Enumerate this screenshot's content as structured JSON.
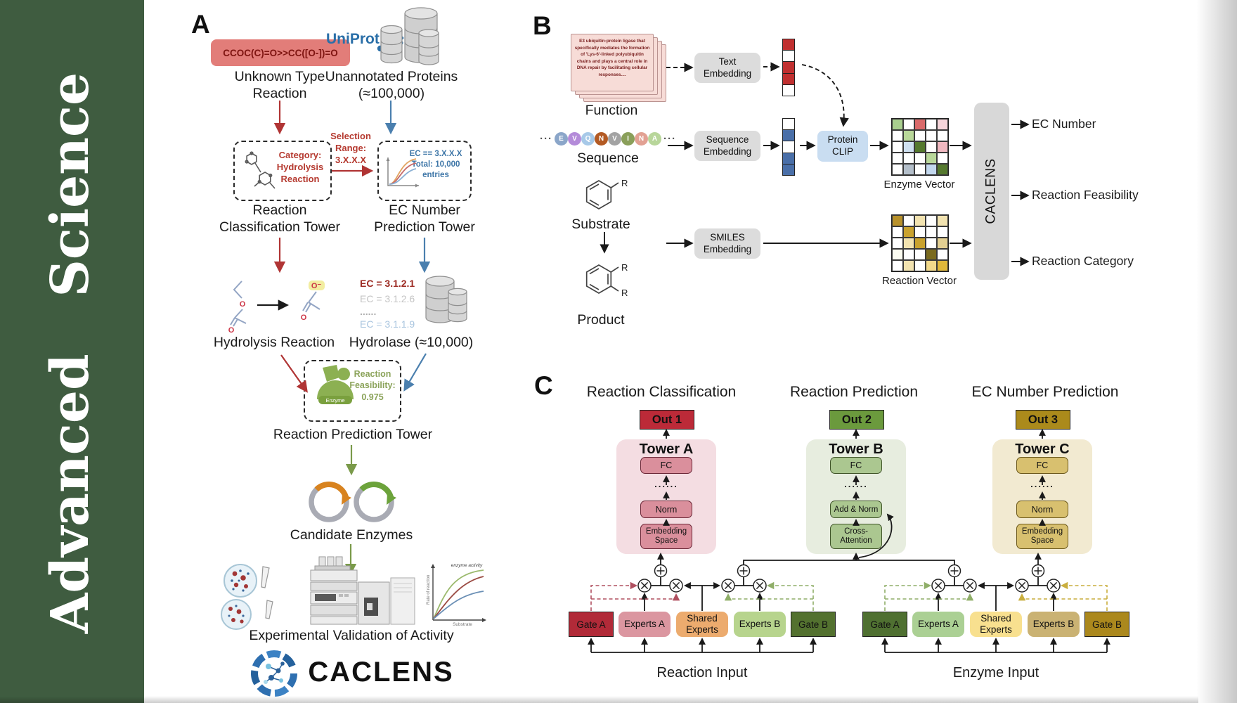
{
  "journal": {
    "name": "Advanced Science"
  },
  "panelA": {
    "label": "A",
    "smiles": "CCOC(C)=O>>CC([O-])=O",
    "unknown_reaction": "Unknown Type Reaction",
    "uniprot": "UniProt",
    "unannotated": "Unannotated Proteins (≈100,000)",
    "classification_note": "Category: Hydrolysis Reaction",
    "selection_note": "Selection Range: 3.X.X.X",
    "ec_note": "EC == 3.X.X.X Total: 10,000 entries",
    "tower_classification": "Reaction Classification Tower",
    "tower_ec": "EC Number Prediction Tower",
    "hydrolysis": "Hydrolysis Reaction",
    "ec_list": [
      "EC = 3.1.2.1",
      "EC = 3.1.2.6",
      "......",
      "EC = 3.1.1.9"
    ],
    "hydrolase": "Hydrolase (≈10,000)",
    "enzyme_label": "Enzyme",
    "feasibility_note": "Reaction Feasibility: 0.975",
    "tower_prediction": "Reaction Prediction Tower",
    "candidates": "Candidate Enzymes",
    "validation": "Experimental Validation of Activity",
    "brand": "CACLENS",
    "atoms": {
      "o": "O",
      "o_minus": "O⁻"
    },
    "mini_chart": {
      "annotation": "enzyme activity",
      "ylabel": "Rate of reaction",
      "xlabel": "Substrate"
    }
  },
  "panelB": {
    "label": "B",
    "function_text": "E3 ubiquitin-protein ligase that specifically mediates the formation of 'Lys-6'-linked polyubiquitin chains and plays a central role in DNA repair by facilitating cellular responses....",
    "function_label": "Function",
    "ellipsis": "···",
    "sequence_label": "Sequence",
    "sequence": [
      {
        "letter": "E",
        "color": "#8ba6c9"
      },
      {
        "letter": "V",
        "color": "#b48bd9"
      },
      {
        "letter": "Q",
        "color": "#a7c9e8"
      },
      {
        "letter": "N",
        "color": "#b35a23"
      },
      {
        "letter": "V",
        "color": "#a3a3a3"
      },
      {
        "letter": "I",
        "color": "#8a9f5a"
      },
      {
        "letter": "N",
        "color": "#e2a193"
      },
      {
        "letter": "A",
        "color": "#b8d69a"
      }
    ],
    "substrate_label": "Substrate",
    "product_label": "Product",
    "r_label": "R",
    "text_embedding": "Text Embedding",
    "sequence_embedding": "Sequence Embedding",
    "smiles_embedding": "SMILES Embedding",
    "protein_clip": "Protein CLIP",
    "text_vector": [
      "#c03030",
      "#ffffff",
      "#c03030",
      "#c03030",
      "#ffffff"
    ],
    "sequence_vector": [
      "#ffffff",
      "#4a6fa8",
      "#ffffff",
      "#4a6fa8",
      "#4a6fa8"
    ],
    "enzyme_vector_label": "Enzyme Vector",
    "enzyme_vector": [
      [
        "#a9cf8e",
        "#ffffff",
        "#d96a6a",
        "#ffffff",
        "#f6d5da"
      ],
      [
        "#ffffff",
        "#b9d89a",
        "#ffffff",
        "#ffffff",
        "#ffffff"
      ],
      [
        "#ffffff",
        "#cfe0f0",
        "#55792e",
        "#ffffff",
        "#f0b8c0"
      ],
      [
        "#ffffff",
        "#ffffff",
        "#ffffff",
        "#b9d89a",
        "#ffffff"
      ],
      [
        "#ffffff",
        "#b4bfca",
        "#ffffff",
        "#c3d8ee",
        "#55792e"
      ]
    ],
    "reaction_vector_label": "Reaction Vector",
    "reaction_vector": [
      [
        "#b8912a",
        "#ffffff",
        "#f2e3b0",
        "#ffffff",
        "#f2e3b0"
      ],
      [
        "#ffffff",
        "#c9a22e",
        "#ffffff",
        "#ffffff",
        "#ffffff"
      ],
      [
        "#ffffff",
        "#f2e3b0",
        "#c9a22e",
        "#ffffff",
        "#e3d092"
      ],
      [
        "#fdfdf2",
        "#ffffff",
        "#ffffff",
        "#7a6a1e",
        "#ffffff"
      ],
      [
        "#ffffff",
        "#f2e3b0",
        "#ffffff",
        "#f2d98a",
        "#e0b83a"
      ]
    ],
    "caclens": "CACLENS",
    "outputs": [
      "EC Number",
      "Reaction Feasibility",
      "Reaction Category"
    ]
  },
  "panelC": {
    "label": "C",
    "columns": [
      {
        "title": "Reaction Classification",
        "out": "Out 1",
        "tower": "Tower A",
        "layers": [
          "FC",
          "......",
          "Norm",
          "Embedding Space"
        ]
      },
      {
        "title": "Reaction Prediction",
        "out": "Out 2",
        "tower": "Tower B",
        "layers": [
          "FC",
          "......",
          "Add & Norm",
          "Cross-Attention"
        ]
      },
      {
        "title": "EC Number Prediction",
        "out": "Out 3",
        "tower": "Tower C",
        "layers": [
          "FC",
          "......",
          "Norm",
          "Embedding Space"
        ]
      }
    ],
    "moe_reaction": {
      "gate_a": "Gate A",
      "experts_a": "Experts A",
      "shared": "Shared Experts",
      "experts_b": "Experts B",
      "gate_b": "Gate B",
      "input_label": "Reaction Input"
    },
    "moe_enzyme": {
      "gate_a": "Gate A",
      "experts_a": "Experts A",
      "shared": "Shared Experts",
      "experts_b": "Experts B",
      "gate_b": "Gate B",
      "input_label": "Enzyme Input"
    }
  }
}
